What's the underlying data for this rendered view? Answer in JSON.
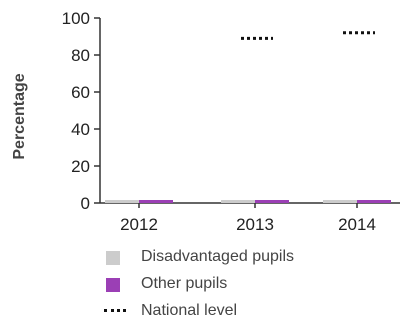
{
  "chart_data": {
    "type": "bar",
    "title": "",
    "xlabel": "",
    "ylabel": "Percentage",
    "ylim": [
      0,
      100
    ],
    "yticks": [
      "0",
      "20",
      "40",
      "60",
      "80",
      "100"
    ],
    "categories": [
      "2012",
      "2013",
      "2014"
    ],
    "series": [
      {
        "name": "Disadvantaged pupils",
        "values": [
          0,
          0,
          0
        ],
        "color": "#cccccc"
      },
      {
        "name": "Other pupils",
        "values": [
          0,
          0,
          0
        ],
        "color": "#9b3fb5"
      }
    ],
    "reference": {
      "name": "National level",
      "values": [
        null,
        89,
        92
      ],
      "color": "#111111",
      "style": "dotted"
    },
    "grid": false,
    "legend_placement": "bottom"
  },
  "legend": {
    "items": [
      {
        "label": "Disadvantaged pupils",
        "kind": "swatch",
        "color": "#cccccc"
      },
      {
        "label": "Other pupils",
        "kind": "swatch",
        "color": "#9b3fb5"
      },
      {
        "label": "National level",
        "kind": "dotted-line",
        "color": "#111111"
      }
    ]
  }
}
